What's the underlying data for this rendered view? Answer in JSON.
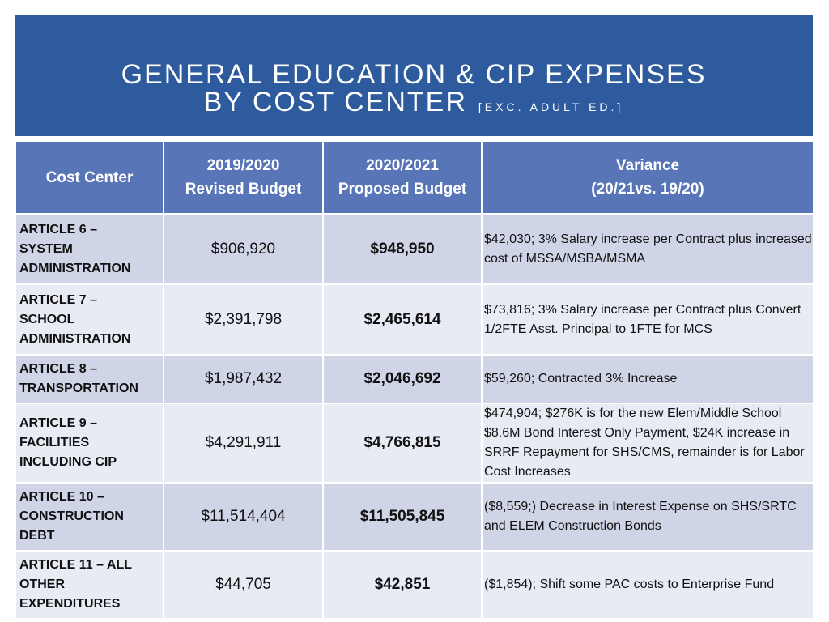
{
  "title": {
    "line1": "GENERAL EDUCATION & CIP EXPENSES",
    "line2": "BY COST CENTER",
    "subtitle": "[EXC. ADULT ED.]"
  },
  "table": {
    "headers": {
      "cost_center": "Cost Center",
      "revised_line1": "2019/2020",
      "revised_line2": "Revised Budget",
      "proposed_line1": "2020/2021",
      "proposed_line2": "Proposed Budget",
      "variance_line1": "Variance",
      "variance_line2": "(20/21vs. 19/20)"
    },
    "rows": [
      {
        "cost_center": [
          "ARTICLE 6 –",
          "SYSTEM",
          "ADMINISTRATION"
        ],
        "revised": "$906,920",
        "proposed": "$948,950",
        "variance": "$42,030; 3% Salary increase per Contract plus increased cost of MSSA/MSBA/MSMA"
      },
      {
        "cost_center": [
          "ARTICLE 7 –",
          "SCHOOL",
          "ADMINISTRATION"
        ],
        "revised": "$2,391,798",
        "proposed": "$2,465,614",
        "variance": "$73,816; 3% Salary increase per Contract plus Convert 1/2FTE Asst. Principal to 1FTE for MCS"
      },
      {
        "cost_center": [
          "ARTICLE 8 –",
          "TRANSPORTATION"
        ],
        "revised": "$1,987,432",
        "proposed": "$2,046,692",
        "variance": "$59,260; Contracted 3% Increase"
      },
      {
        "cost_center": [
          "ARTICLE 9 –",
          "FACILITIES",
          "INCLUDING CIP"
        ],
        "revised": "$4,291,911",
        "proposed": "$4,766,815",
        "variance": "$474,904; $276K is for the new Elem/Middle School $8.6M Bond Interest Only Payment, $24K increase in SRRF Repayment for SHS/CMS, remainder is for Labor Cost Increases"
      },
      {
        "cost_center": [
          "ARTICLE 10 –",
          "CONSTRUCTION",
          "DEBT"
        ],
        "revised": "$11,514,404",
        "proposed": "$11,505,845",
        "variance": "($8,559;) Decrease in Interest Expense on SHS/SRTC and ELEM Construction Bonds"
      },
      {
        "cost_center": [
          "ARTICLE 11 – ALL",
          "OTHER",
          "EXPENDITURES"
        ],
        "revised": "$44,705",
        "proposed": "$42,851",
        "variance": "($1,854); Shift some PAC costs to Enterprise Fund"
      }
    ]
  },
  "colors": {
    "banner": "#2e5b9e",
    "header": "#5875b8",
    "row_dark": "#cfd5e7",
    "row_light": "#e8ebf3"
  }
}
